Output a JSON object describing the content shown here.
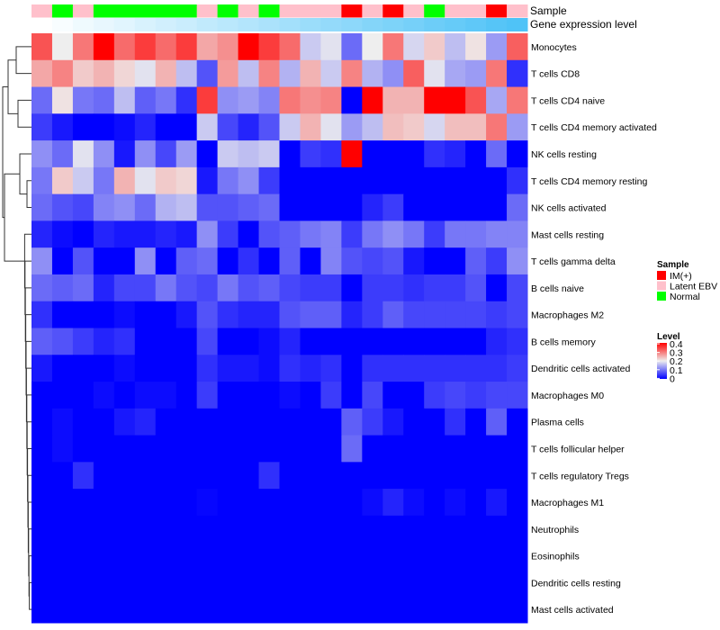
{
  "chart_data": {
    "type": "heatmap",
    "title": "",
    "annotation_labels": {
      "sample": "Sample",
      "gene": "Gene expression level"
    },
    "sample_annotation": [
      "Latent EBV",
      "Normal",
      "Latent EBV",
      "Normal",
      "Normal",
      "Normal",
      "Normal",
      "Normal",
      "Latent EBV",
      "Normal",
      "Latent EBV",
      "Normal",
      "Latent EBV",
      "Latent EBV",
      "Latent EBV",
      "IM(+)",
      "Latent EBV",
      "IM(+)",
      "Latent EBV",
      "Normal",
      "Latent EBV",
      "Latent EBV",
      "IM(+)",
      "Latent EBV"
    ],
    "gene_expression_level": [
      0,
      0.04,
      0.09,
      0.13,
      0.17,
      0.22,
      0.26,
      0.3,
      0.35,
      0.39,
      0.43,
      0.48,
      0.52,
      0.57,
      0.61,
      0.65,
      0.7,
      0.74,
      0.78,
      0.83,
      0.87,
      0.91,
      0.96,
      1
    ],
    "rows": [
      "Monocytes",
      "T cells CD8",
      "T cells CD4 naive",
      "T cells CD4 memory activated",
      "NK cells resting",
      "T cells CD4 memory resting",
      "NK cells activated",
      "Mast cells resting",
      "T cells gamma delta",
      "B cells naive",
      "Macrophages M2",
      "B cells memory",
      "Dendritic cells activated",
      "Macrophages M0",
      "Plasma cells",
      "T cells follicular helper",
      "T cells regulatory  Tregs",
      "Macrophages M1",
      "Neutrophils",
      "Eosinophils",
      "Dendritic cells resting",
      "Mast cells activated"
    ],
    "values": [
      [
        0.33,
        0.2,
        0.3,
        0.4,
        0.31,
        0.35,
        0.31,
        0.35,
        0.26,
        0.28,
        0.4,
        0.35,
        0.31,
        0.17,
        0.19,
        0.09,
        0.2,
        0.3,
        0.18,
        0.23,
        0.16,
        0.21,
        0.13,
        0.32
      ],
      [
        0.26,
        0.29,
        0.23,
        0.25,
        0.22,
        0.19,
        0.25,
        0.16,
        0.07,
        0.27,
        0.16,
        0.29,
        0.15,
        0.25,
        0.17,
        0.29,
        0.15,
        0.12,
        0.32,
        0.19,
        0.14,
        0.13,
        0.3,
        0.04
      ],
      [
        0.09,
        0.21,
        0.1,
        0.09,
        0.16,
        0.08,
        0.1,
        0.04,
        0.35,
        0.12,
        0.13,
        0.11,
        0.3,
        0.28,
        0.29,
        0,
        0.4,
        0.25,
        0.25,
        0.4,
        0.4,
        0.33,
        0.14,
        0.3
      ],
      [
        0.05,
        0.02,
        0,
        0,
        0.01,
        0.03,
        0,
        0,
        0.17,
        0.06,
        0.03,
        0.07,
        0.17,
        0.25,
        0.19,
        0.13,
        0.16,
        0.24,
        0.23,
        0.18,
        0.24,
        0.24,
        0.3,
        0.13
      ],
      [
        0.12,
        0.09,
        0.19,
        0.12,
        0.02,
        0.12,
        0.06,
        0.13,
        0,
        0.17,
        0.16,
        0.17,
        0,
        0.05,
        0.04,
        0.4,
        0,
        0,
        0,
        0.04,
        0.03,
        0,
        0.09,
        0
      ],
      [
        0.1,
        0.23,
        0.17,
        0.1,
        0.25,
        0.19,
        0.23,
        0.22,
        0.02,
        0.1,
        0.12,
        0.05,
        0,
        0,
        0,
        0,
        0,
        0,
        0,
        0,
        0,
        0,
        0,
        0.04
      ],
      [
        0.09,
        0.07,
        0.06,
        0.11,
        0.12,
        0.09,
        0.15,
        0.16,
        0.07,
        0.07,
        0.08,
        0.09,
        0,
        0,
        0,
        0,
        0.03,
        0.05,
        0,
        0,
        0,
        0,
        0,
        0.09
      ],
      [
        0.03,
        0.01,
        0,
        0.03,
        0.02,
        0.02,
        0.03,
        0.02,
        0.12,
        0.05,
        0,
        0.07,
        0.08,
        0.1,
        0.11,
        0.05,
        0.1,
        0.12,
        0.1,
        0.05,
        0.1,
        0.1,
        0.11,
        0.11
      ],
      [
        0.12,
        0,
        0.07,
        0,
        0,
        0.12,
        0,
        0.08,
        0.09,
        0,
        0.04,
        0,
        0.08,
        0,
        0.11,
        0.07,
        0.06,
        0.07,
        0.02,
        0,
        0,
        0.08,
        0.05,
        0.12
      ],
      [
        0.09,
        0.08,
        0.09,
        0.03,
        0.06,
        0.06,
        0.1,
        0.07,
        0.06,
        0.1,
        0.07,
        0.08,
        0.06,
        0.05,
        0.05,
        0,
        0.05,
        0.05,
        0.04,
        0.05,
        0.05,
        0.07,
        0,
        0.06
      ],
      [
        0.04,
        0,
        0,
        0,
        0.01,
        0,
        0,
        0.02,
        0.07,
        0.04,
        0.03,
        0.03,
        0.07,
        0.08,
        0.08,
        0.03,
        0.05,
        0.08,
        0.06,
        0.06,
        0.06,
        0.06,
        0.05,
        0.06
      ],
      [
        0.08,
        0.07,
        0.05,
        0.03,
        0.04,
        0,
        0,
        0,
        0.06,
        0,
        0,
        0.01,
        0.03,
        0,
        0,
        0,
        0,
        0,
        0,
        0,
        0,
        0,
        0.03,
        0.04
      ],
      [
        0.02,
        0,
        0,
        0,
        0.01,
        0,
        0,
        0,
        0.04,
        0.02,
        0.02,
        0.01,
        0.04,
        0.03,
        0.04,
        0,
        0.04,
        0.04,
        0.04,
        0.04,
        0.04,
        0.04,
        0.04,
        0.05
      ],
      [
        0,
        0,
        0,
        0.01,
        0,
        0.01,
        0.01,
        0,
        0.05,
        0,
        0,
        0,
        0.01,
        0,
        0.05,
        0,
        0.06,
        0,
        0,
        0.05,
        0.06,
        0.05,
        0.06,
        0.06
      ],
      [
        0,
        0.01,
        0,
        0,
        0.02,
        0.03,
        0,
        0,
        0,
        0,
        0,
        0,
        0,
        0,
        0,
        0.08,
        0.05,
        0.02,
        0,
        0,
        0.04,
        0,
        0.08,
        0
      ],
      [
        0,
        0.01,
        0,
        0,
        0,
        0,
        0,
        0,
        0,
        0,
        0,
        0,
        0,
        0,
        0,
        0.09,
        0,
        0,
        0,
        0,
        0,
        0,
        0,
        0
      ],
      [
        0,
        0,
        0.04,
        0,
        0,
        0,
        0,
        0,
        0,
        0,
        0,
        0.04,
        0,
        0,
        0,
        0,
        0,
        0,
        0,
        0,
        0,
        0,
        0,
        0
      ],
      [
        0,
        0,
        0,
        0,
        0,
        0,
        0,
        0,
        0.005,
        0,
        0,
        0,
        0,
        0,
        0,
        0,
        0.01,
        0.03,
        0.01,
        0,
        0.01,
        0,
        0.02,
        0
      ],
      [
        0,
        0,
        0,
        0,
        0,
        0,
        0,
        0,
        0,
        0,
        0,
        0,
        0,
        0,
        0,
        0,
        0,
        0,
        0,
        0,
        0,
        0,
        0,
        0
      ],
      [
        0,
        0,
        0,
        0,
        0,
        0,
        0,
        0,
        0,
        0,
        0,
        0,
        0,
        0,
        0,
        0,
        0,
        0,
        0,
        0,
        0,
        0,
        0,
        0
      ],
      [
        0,
        0,
        0,
        0,
        0,
        0,
        0,
        0,
        0,
        0,
        0,
        0,
        0,
        0,
        0,
        0,
        0,
        0,
        0,
        0,
        0,
        0,
        0,
        0
      ],
      [
        0,
        0,
        0,
        0,
        0,
        0,
        0,
        0,
        0,
        0,
        0,
        0,
        0,
        0,
        0,
        0,
        0,
        0,
        0,
        0,
        0,
        0,
        0,
        0
      ]
    ],
    "color_range": [
      0,
      0.4
    ],
    "colors": {
      "low": "#0000FF",
      "mid": "#EEEEEE",
      "high": "#FF0000",
      "gene_low": "#FFFFFF",
      "gene_high": "#4FC3F7"
    },
    "legend": {
      "sample_title": "Sample",
      "sample_entries": [
        {
          "label": "IM(+)",
          "color": "#FF0000"
        },
        {
          "label": "Latent EBV",
          "color": "#FFC0CB"
        },
        {
          "label": "Normal",
          "color": "#00FF00"
        }
      ],
      "level_title": "Level",
      "level_ticks": [
        "0.4",
        "0.3",
        "0.2",
        "0.1",
        "0"
      ],
      "placement": "right"
    }
  }
}
